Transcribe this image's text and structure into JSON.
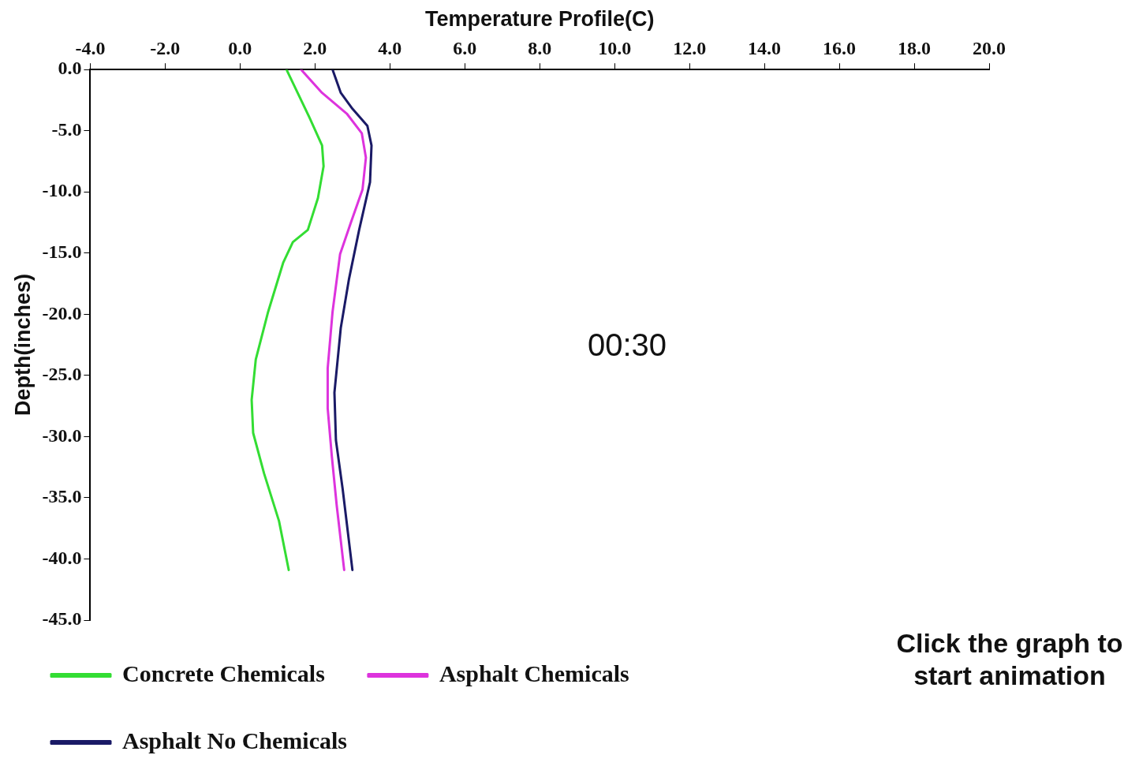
{
  "chart_data": {
    "type": "line",
    "xlabel": "Temperature Profile(C)",
    "ylabel": "Depth(inches)",
    "xlim": [
      -4,
      20
    ],
    "xticks": [
      {
        "value": -4,
        "label": "-4.0"
      },
      {
        "value": -2,
        "label": "-2.0"
      },
      {
        "value": 0,
        "label": "0.0"
      },
      {
        "value": 2,
        "label": "2.0"
      },
      {
        "value": 4,
        "label": "4.0"
      },
      {
        "value": 6,
        "label": "6.0"
      },
      {
        "value": 8,
        "label": "8.0"
      },
      {
        "value": 10,
        "label": "10.0"
      },
      {
        "value": 12,
        "label": "12.0"
      },
      {
        "value": 14,
        "label": "14.0"
      },
      {
        "value": 16,
        "label": "16.0"
      },
      {
        "value": 18,
        "label": "18.0"
      },
      {
        "value": 20,
        "label": "20.0"
      }
    ],
    "ylim": [
      -45,
      0
    ],
    "yticks": [
      {
        "value": 0,
        "label": "0.0"
      },
      {
        "value": -5,
        "label": "-5.0"
      },
      {
        "value": -10,
        "label": "-10.0"
      },
      {
        "value": -15,
        "label": "-15.0"
      },
      {
        "value": -20,
        "label": "-20.0"
      },
      {
        "value": -25,
        "label": "-25.0"
      },
      {
        "value": -30,
        "label": "-30.0"
      },
      {
        "value": -35,
        "label": "-35.0"
      },
      {
        "value": -40,
        "label": "-40.0"
      },
      {
        "value": -45,
        "label": "-45.0"
      }
    ],
    "grid": false,
    "legend": "bottom",
    "marker": "none",
    "line_style": "solid",
    "annotations": [
      "00:30",
      "Click the graph to start animation"
    ],
    "series": [
      {
        "name": "Concrete Chemicals",
        "color": "#33dd33",
        "x": [
          1.24,
          1.85,
          2.19,
          2.23,
          2.08,
          1.81,
          1.41,
          1.15,
          0.75,
          0.42,
          0.31,
          0.35,
          0.64,
          1.04,
          1.3
        ],
        "values": [
          0,
          -3.9,
          -6.2,
          -7.9,
          -10.5,
          -13.1,
          -14.1,
          -15.8,
          -19.8,
          -23.7,
          -27,
          -29.7,
          -33,
          -36.9,
          -40.9
        ]
      },
      {
        "name": "Asphalt Chemicals",
        "color": "#dd33dd",
        "x": [
          1.63,
          2.19,
          2.85,
          3.25,
          3.36,
          3.27,
          2.96,
          2.67,
          2.47,
          2.34,
          2.34,
          2.45,
          2.58,
          2.78
        ],
        "values": [
          0,
          -1.9,
          -3.6,
          -5.2,
          -7.2,
          -9.8,
          -12.5,
          -15.1,
          -19.8,
          -24.4,
          -27.7,
          -31.6,
          -35.6,
          -40.9
        ]
      },
      {
        "name": "Asphalt No Chemicals",
        "color": "#1a1a66",
        "x": [
          2.47,
          2.69,
          3.0,
          3.4,
          3.51,
          3.47,
          3.18,
          2.91,
          2.69,
          2.52,
          2.56,
          2.74,
          3.0
        ],
        "values": [
          0,
          -1.9,
          -3.2,
          -4.6,
          -6.2,
          -9.2,
          -13.1,
          -17.1,
          -21.1,
          -26.4,
          -30.3,
          -34.3,
          -40.9
        ]
      }
    ]
  }
}
